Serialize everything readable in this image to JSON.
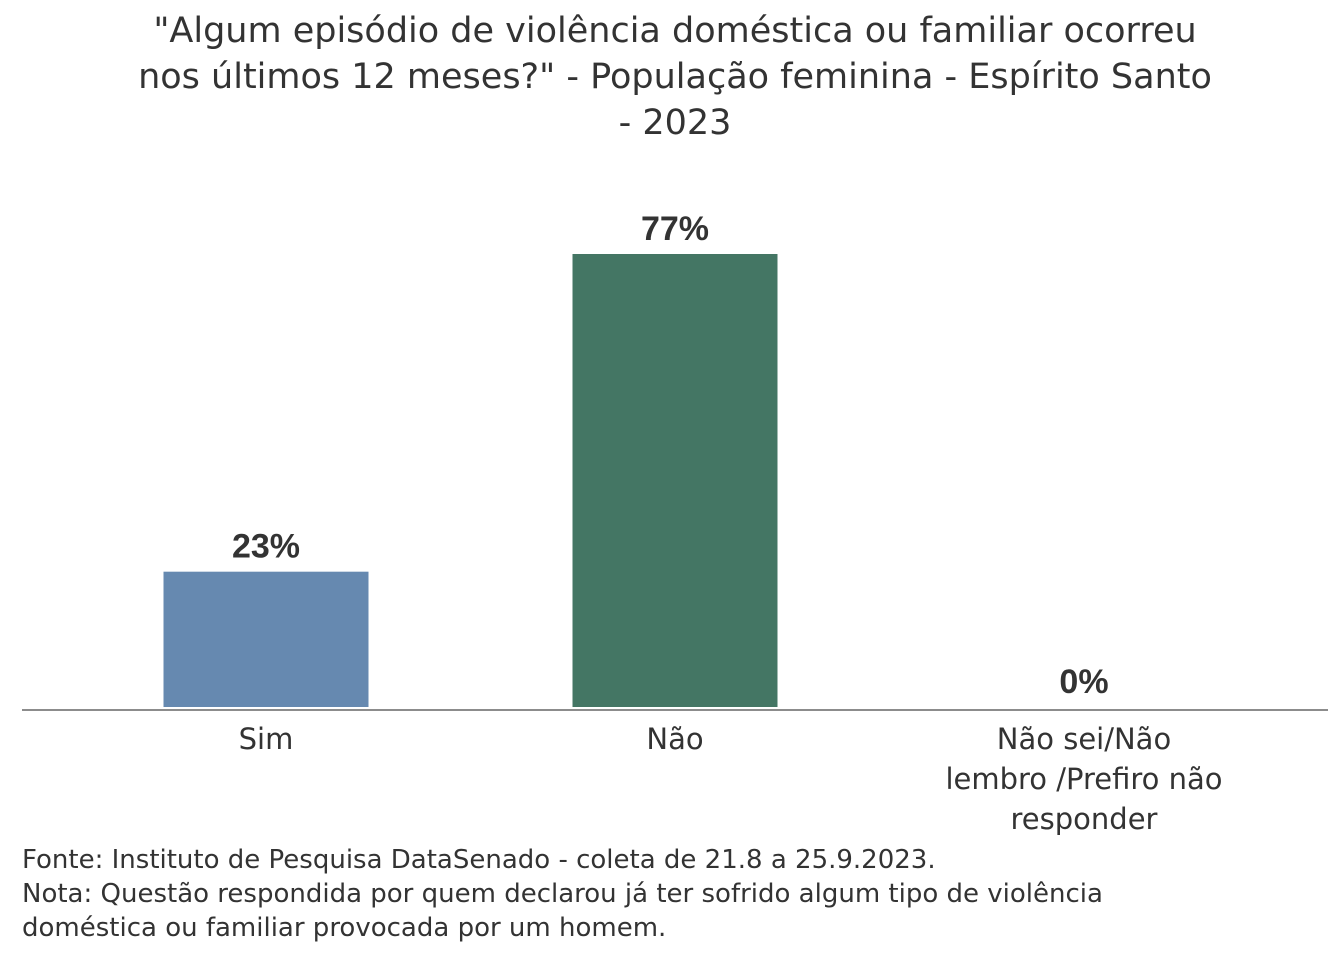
{
  "chart_data": {
    "type": "bar",
    "title": "\"Algum episódio de violência doméstica ou familiar ocorreu nos últimos 12 meses?\" - População feminina - Espírito Santo - 2023",
    "title_lines": [
      "\"Algum episódio de violência doméstica ou familiar ocorreu",
      "nos últimos 12 meses?\" - População feminina - Espírito Santo",
      "- 2023"
    ],
    "categories": [
      "Sim",
      "Não",
      "Não sei/Não lembro /Prefiro não responder"
    ],
    "category_lines": [
      [
        "Sim"
      ],
      [
        "Não"
      ],
      [
        "Não sei/Não",
        "lembro /Prefiro não",
        "responder"
      ]
    ],
    "values": [
      23,
      77,
      0
    ],
    "data_labels": [
      "23%",
      "77%",
      "0%"
    ],
    "colors": [
      "#6689b0",
      "#447664",
      "#cccccc"
    ],
    "xlabel": "",
    "ylabel": "",
    "ylim": [
      0,
      77
    ],
    "grid": false,
    "legend": "none"
  },
  "footer": {
    "source": "Fonte: Instituto de Pesquisa DataSenado - coleta de 21.8 a 25.9.2023.",
    "note_line1": "Nota: Questão respondida por quem declarou já ter sofrido algum tipo de violência",
    "note_line2": "doméstica ou familiar provocada por um homem."
  }
}
